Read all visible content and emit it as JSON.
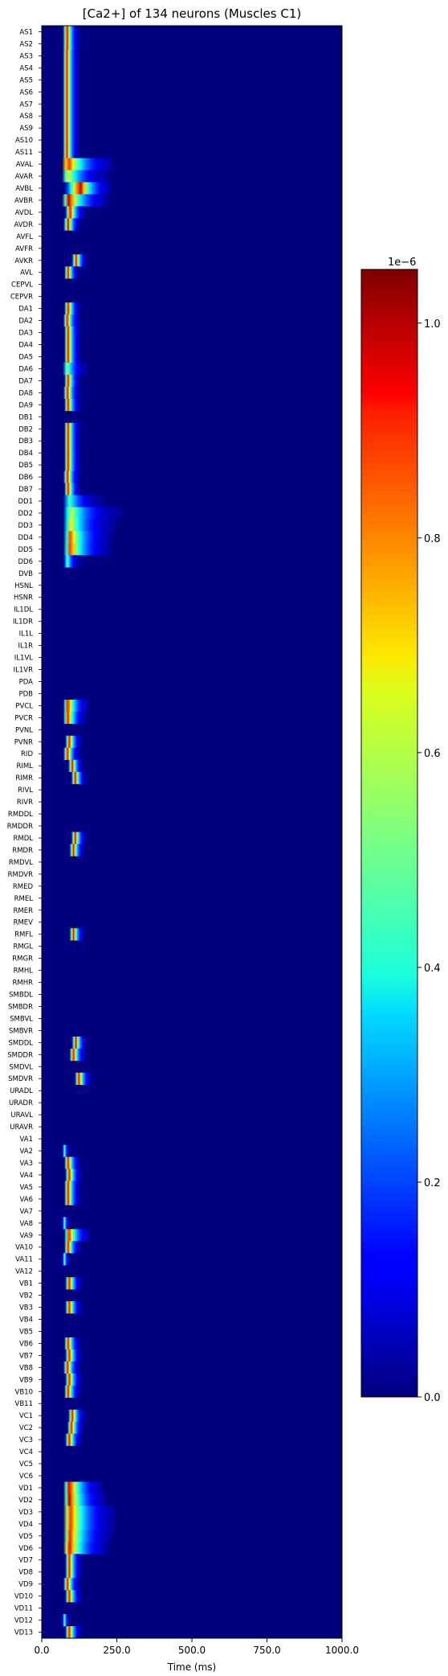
{
  "chart_data": {
    "type": "heatmap",
    "title": "[Ca2+] of 134 neurons (Muscles C1)",
    "xlabel": "Time (ms)",
    "ylabel": "",
    "xlim": [
      0,
      1000
    ],
    "xticks": [
      0,
      250,
      500,
      750,
      1000
    ],
    "xtick_labels": [
      "0.0",
      "250.0",
      "500.0",
      "750.0",
      "1000.0"
    ],
    "colormap": "jet",
    "colorbar": {
      "range": [
        0,
        1.05
      ],
      "ticks": [
        0.0,
        0.2,
        0.4,
        0.6,
        0.8,
        1.0
      ],
      "tick_labels": [
        "0.0",
        "0.2",
        "0.4",
        "0.6",
        "0.8",
        "1.0"
      ],
      "offset_label": "1e−6"
    },
    "value_units": "x 1e-6",
    "neurons": [
      "AS1",
      "AS2",
      "AS3",
      "AS4",
      "AS5",
      "AS6",
      "AS7",
      "AS8",
      "AS9",
      "AS10",
      "AS11",
      "AVAL",
      "AVAR",
      "AVBL",
      "AVBR",
      "AVDL",
      "AVDR",
      "AVFL",
      "AVFR",
      "AVKR",
      "AVL",
      "CEPVL",
      "CEPVR",
      "DA1",
      "DA2",
      "DA3",
      "DA4",
      "DA5",
      "DA6",
      "DA7",
      "DA8",
      "DA9",
      "DB1",
      "DB2",
      "DB3",
      "DB4",
      "DB5",
      "DB6",
      "DB7",
      "DD1",
      "DD2",
      "DD3",
      "DD4",
      "DD5",
      "DD6",
      "DVB",
      "HSNL",
      "HSNR",
      "IL1DL",
      "IL1DR",
      "IL1L",
      "IL1R",
      "IL1VL",
      "IL1VR",
      "PDA",
      "PDB",
      "PVCL",
      "PVCR",
      "PVNL",
      "PVNR",
      "RID",
      "RIML",
      "RIMR",
      "RIVL",
      "RIVR",
      "RMDDL",
      "RMDDR",
      "RMDL",
      "RMDR",
      "RMDVL",
      "RMDVR",
      "RMED",
      "RMEL",
      "RMER",
      "RMEV",
      "RMFL",
      "RMGL",
      "RMGR",
      "RMHL",
      "RMHR",
      "SMBDL",
      "SMBDR",
      "SMBVL",
      "SMBVR",
      "SMDDL",
      "SMDDR",
      "SMDVL",
      "SMDVR",
      "URADL",
      "URADR",
      "URAVL",
      "URAVR",
      "VA1",
      "VA2",
      "VA3",
      "VA4",
      "VA5",
      "VA6",
      "VA7",
      "VA8",
      "VA9",
      "VA10",
      "VA11",
      "VA12",
      "VB1",
      "VB2",
      "VB3",
      "VB4",
      "VB5",
      "VB6",
      "VB7",
      "VB8",
      "VB9",
      "VB10",
      "VB11",
      "VC1",
      "VC2",
      "VC3",
      "VC4",
      "VC5",
      "VC6",
      "VD1",
      "VD2",
      "VD3",
      "VD4",
      "VD5",
      "VD6",
      "VD7",
      "VD8",
      "VD9",
      "VD10",
      "VD11",
      "VD12",
      "VD13"
    ],
    "activity": {
      "AS1": {
        "onset": 70,
        "peak_time": 85,
        "peak": 1.0,
        "tail": 40
      },
      "AS2": {
        "onset": 70,
        "peak_time": 85,
        "peak": 1.0,
        "tail": 40
      },
      "AS3": {
        "onset": 70,
        "peak_time": 84,
        "peak": 1.0,
        "tail": 40
      },
      "AS4": {
        "onset": 70,
        "peak_time": 84,
        "peak": 1.0,
        "tail": 40
      },
      "AS5": {
        "onset": 70,
        "peak_time": 84,
        "peak": 1.0,
        "tail": 40
      },
      "AS6": {
        "onset": 70,
        "peak_time": 84,
        "peak": 1.0,
        "tail": 40
      },
      "AS7": {
        "onset": 70,
        "peak_time": 84,
        "peak": 1.0,
        "tail": 40
      },
      "AS8": {
        "onset": 70,
        "peak_time": 84,
        "peak": 1.0,
        "tail": 40
      },
      "AS9": {
        "onset": 70,
        "peak_time": 84,
        "peak": 1.0,
        "tail": 40
      },
      "AS10": {
        "onset": 70,
        "peak_time": 84,
        "peak": 1.0,
        "tail": 40
      },
      "AS11": {
        "onset": 70,
        "peak_time": 84,
        "peak": 1.0,
        "tail": 40
      },
      "AVAL": {
        "onset": 68,
        "peak_time": 85,
        "peak": 1.0,
        "tail": 150
      },
      "AVAR": {
        "onset": 68,
        "peak_time": 85,
        "peak": 0.7,
        "tail": 140
      },
      "AVBL": {
        "onset": 75,
        "peak_time": 130,
        "peak": 1.0,
        "tail": 100
      },
      "AVBR": {
        "onset": 68,
        "peak_time": 90,
        "peak": 1.0,
        "tail": 130
      },
      "AVDL": {
        "onset": 78,
        "peak_time": 95,
        "peak": 1.0,
        "tail": 50
      },
      "AVDR": {
        "onset": 72,
        "peak_time": 88,
        "peak": 1.0,
        "tail": 40
      },
      "AVFL": null,
      "AVFR": null,
      "AVKR": {
        "onset": 100,
        "peak_time": 115,
        "peak": 1.0,
        "tail": 35
      },
      "AVL": {
        "onset": 75,
        "peak_time": 88,
        "peak": 1.0,
        "tail": 35
      },
      "CEPVL": null,
      "CEPVR": null,
      "DA1": {
        "onset": 75,
        "peak_time": 88,
        "peak": 1.0,
        "tail": 40
      },
      "DA2": {
        "onset": 72,
        "peak_time": 85,
        "peak": 1.0,
        "tail": 40
      },
      "DA3": {
        "onset": 75,
        "peak_time": 88,
        "peak": 1.0,
        "tail": 40
      },
      "DA4": {
        "onset": 75,
        "peak_time": 88,
        "peak": 1.0,
        "tail": 40
      },
      "DA5": {
        "onset": 75,
        "peak_time": 88,
        "peak": 1.0,
        "tail": 40
      },
      "DA6": {
        "onset": 70,
        "peak_time": 84,
        "peak": 0.6,
        "tail": 70
      },
      "DA7": {
        "onset": 75,
        "peak_time": 88,
        "peak": 1.0,
        "tail": 40
      },
      "DA8": {
        "onset": 72,
        "peak_time": 86,
        "peak": 1.0,
        "tail": 40
      },
      "DA9": {
        "onset": 75,
        "peak_time": 88,
        "peak": 1.0,
        "tail": 40
      },
      "DB1": null,
      "DB2": {
        "onset": 75,
        "peak_time": 88,
        "peak": 1.0,
        "tail": 40
      },
      "DB3": {
        "onset": 75,
        "peak_time": 88,
        "peak": 1.0,
        "tail": 40
      },
      "DB4": {
        "onset": 75,
        "peak_time": 88,
        "peak": 1.0,
        "tail": 40
      },
      "DB5": {
        "onset": 75,
        "peak_time": 88,
        "peak": 1.0,
        "tail": 40
      },
      "DB6": {
        "onset": 72,
        "peak_time": 86,
        "peak": 1.0,
        "tail": 40
      },
      "DB7": {
        "onset": 75,
        "peak_time": 88,
        "peak": 1.0,
        "tail": 40
      },
      "DD1": {
        "onset": 72,
        "peak_time": 90,
        "peak": 0.5,
        "tail": 120
      },
      "DD2": {
        "onset": 72,
        "peak_time": 95,
        "peak": 0.65,
        "tail": 170
      },
      "DD3": {
        "onset": 72,
        "peak_time": 95,
        "peak": 0.7,
        "tail": 150
      },
      "DD4": {
        "onset": 72,
        "peak_time": 95,
        "peak": 0.85,
        "tail": 140
      },
      "DD5": {
        "onset": 72,
        "peak_time": 95,
        "peak": 0.9,
        "tail": 130
      },
      "DD6": {
        "onset": 72,
        "peak_time": 85,
        "peak": 0.5,
        "tail": 50
      },
      "DVB": null,
      "HSNL": null,
      "HSNR": null,
      "IL1DL": null,
      "IL1DR": null,
      "IL1L": null,
      "IL1R": null,
      "IL1VL": null,
      "IL1VR": null,
      "PDA": null,
      "PDB": null,
      "PVCL": {
        "onset": 72,
        "peak_time": 86,
        "peak": 1.0,
        "tail": 70
      },
      "PVCR": {
        "onset": 72,
        "peak_time": 86,
        "peak": 1.0,
        "tail": 60
      },
      "PVNL": null,
      "PVNR": {
        "onset": 78,
        "peak_time": 92,
        "peak": 1.0,
        "tail": 40
      },
      "RID": {
        "onset": 72,
        "peak_time": 86,
        "peak": 1.0,
        "tail": 40
      },
      "RIML": {
        "onset": 88,
        "peak_time": 102,
        "peak": 1.0,
        "tail": 35
      },
      "RIMR": {
        "onset": 98,
        "peak_time": 112,
        "peak": 1.0,
        "tail": 35
      },
      "RIVL": null,
      "RIVR": null,
      "RMDDL": null,
      "RMDDR": null,
      "RMDL": {
        "onset": 98,
        "peak_time": 112,
        "peak": 1.0,
        "tail": 35
      },
      "RMDR": {
        "onset": 92,
        "peak_time": 106,
        "peak": 1.0,
        "tail": 35
      },
      "RMDVL": null,
      "RMDVR": null,
      "RMED": null,
      "RMEL": null,
      "RMER": null,
      "RMEV": null,
      "RMFL": {
        "onset": 92,
        "peak_time": 106,
        "peak": 1.0,
        "tail": 35
      },
      "RMGL": null,
      "RMGR": null,
      "RMHL": null,
      "RMHR": null,
      "SMBDL": null,
      "SMBDR": null,
      "SMBVL": null,
      "SMBVR": null,
      "SMDDL": {
        "onset": 100,
        "peak_time": 114,
        "peak": 1.0,
        "tail": 35
      },
      "SMDDR": {
        "onset": 92,
        "peak_time": 106,
        "peak": 1.0,
        "tail": 40
      },
      "SMDVL": null,
      "SMDVR": {
        "onset": 110,
        "peak_time": 124,
        "peak": 1.0,
        "tail": 40
      },
      "URADL": null,
      "URADR": null,
      "URAVL": null,
      "URAVR": null,
      "VA1": null,
      "VA2": {
        "onset": 68,
        "peak_time": 76,
        "peak": 0.5,
        "tail": 20
      },
      "VA3": {
        "onset": 75,
        "peak_time": 88,
        "peak": 1.0,
        "tail": 40
      },
      "VA4": {
        "onset": 78,
        "peak_time": 92,
        "peak": 1.0,
        "tail": 40
      },
      "VA5": {
        "onset": 75,
        "peak_time": 88,
        "peak": 1.0,
        "tail": 40
      },
      "VA6": {
        "onset": 75,
        "peak_time": 88,
        "peak": 1.0,
        "tail": 40
      },
      "VA7": null,
      "VA8": {
        "onset": 68,
        "peak_time": 76,
        "peak": 0.5,
        "tail": 20
      },
      "VA9": {
        "onset": 75,
        "peak_time": 90,
        "peak": 1.0,
        "tail": 70
      },
      "VA10": {
        "onset": 75,
        "peak_time": 88,
        "peak": 1.0,
        "tail": 40
      },
      "VA11": {
        "onset": 68,
        "peak_time": 76,
        "peak": 0.5,
        "tail": 20
      },
      "VA12": null,
      "VB1": {
        "onset": 78,
        "peak_time": 92,
        "peak": 1.0,
        "tail": 40
      },
      "VB2": null,
      "VB3": {
        "onset": 78,
        "peak_time": 92,
        "peak": 1.0,
        "tail": 40
      },
      "VB4": null,
      "VB5": null,
      "VB6": {
        "onset": 75,
        "peak_time": 88,
        "peak": 1.0,
        "tail": 40
      },
      "VB7": {
        "onset": 78,
        "peak_time": 92,
        "peak": 1.0,
        "tail": 40
      },
      "VB8": {
        "onset": 72,
        "peak_time": 86,
        "peak": 1.0,
        "tail": 40
      },
      "VB9": {
        "onset": 78,
        "peak_time": 92,
        "peak": 1.0,
        "tail": 40
      },
      "VB10": {
        "onset": 75,
        "peak_time": 88,
        "peak": 1.0,
        "tail": 40
      },
      "VB11": null,
      "VC1": {
        "onset": 88,
        "peak_time": 102,
        "peak": 1.0,
        "tail": 40
      },
      "VC2": {
        "onset": 85,
        "peak_time": 99,
        "peak": 1.0,
        "tail": 40
      },
      "VC3": {
        "onset": 78,
        "peak_time": 92,
        "peak": 1.0,
        "tail": 40
      },
      "VC4": null,
      "VC5": null,
      "VC6": null,
      "VD1": {
        "onset": 72,
        "peak_time": 92,
        "peak": 1.0,
        "tail": 110
      },
      "VD2": {
        "onset": 72,
        "peak_time": 92,
        "peak": 1.0,
        "tail": 120
      },
      "VD3": {
        "onset": 72,
        "peak_time": 92,
        "peak": 0.95,
        "tail": 150
      },
      "VD4": {
        "onset": 72,
        "peak_time": 92,
        "peak": 0.95,
        "tail": 150
      },
      "VD5": {
        "onset": 72,
        "peak_time": 92,
        "peak": 0.95,
        "tail": 140
      },
      "VD6": {
        "onset": 72,
        "peak_time": 90,
        "peak": 1.0,
        "tail": 130
      },
      "VD7": {
        "onset": 78,
        "peak_time": 92,
        "peak": 1.0,
        "tail": 40
      },
      "VD8": {
        "onset": 78,
        "peak_time": 92,
        "peak": 1.0,
        "tail": 40
      },
      "VD9": {
        "onset": 72,
        "peak_time": 86,
        "peak": 1.0,
        "tail": 40
      },
      "VD10": {
        "onset": 78,
        "peak_time": 92,
        "peak": 1.0,
        "tail": 40
      },
      "VD11": null,
      "VD12": {
        "onset": 68,
        "peak_time": 76,
        "peak": 0.5,
        "tail": 20
      },
      "VD13": {
        "onset": 78,
        "peak_time": 92,
        "peak": 1.0,
        "tail": 40
      }
    }
  }
}
